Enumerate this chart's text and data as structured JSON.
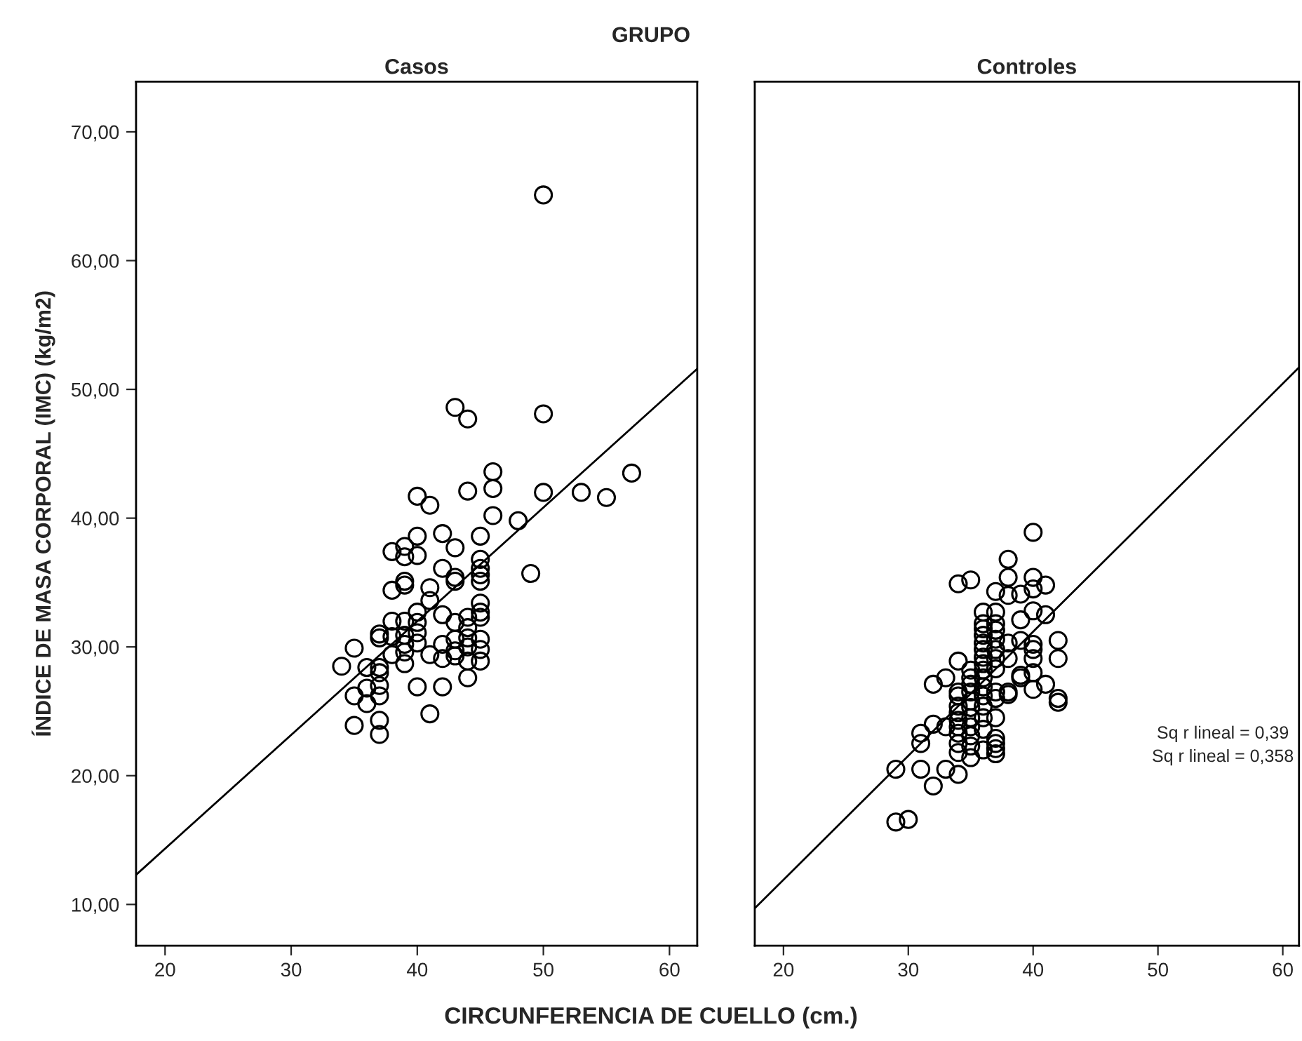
{
  "chart_data": [
    {
      "type": "scatter",
      "title": "Casos",
      "xlabel": "CIRCUNFERENCIA DE CUELLO (cm.)",
      "ylabel": "ÍNDICE DE MASA CORPORAL (IMC) (kg/m2)",
      "annotations": [
        "GRUPO"
      ],
      "xlim": [
        17.7,
        62.2
      ],
      "ylim": [
        6.8,
        73.9
      ],
      "xticks": [
        20,
        30,
        40,
        50,
        60
      ],
      "yticks": [
        {
          "value": 10,
          "label": "10,00"
        },
        {
          "value": 20,
          "label": "20,00"
        },
        {
          "value": 30,
          "label": "30,00"
        },
        {
          "value": 40,
          "label": "40,00"
        },
        {
          "value": 50,
          "label": "50,00"
        },
        {
          "value": 60,
          "label": "60,00"
        },
        {
          "value": 70,
          "label": "70,00"
        }
      ],
      "grid": false,
      "legend": false,
      "series": [
        {
          "marker": "circle",
          "color": "#000000",
          "x": [
            50,
            43,
            44,
            50,
            46,
            57,
            40,
            41,
            44,
            46,
            50,
            53,
            55,
            46,
            48,
            40,
            42,
            45,
            43,
            38,
            39,
            39,
            40,
            42,
            45,
            45,
            45,
            45,
            43,
            43,
            49,
            39,
            39,
            38,
            41,
            41,
            45,
            45,
            45,
            40,
            42,
            43,
            44,
            44,
            38,
            39,
            40,
            37,
            37,
            38,
            39,
            40,
            40,
            39,
            42,
            43,
            44,
            45,
            43,
            43,
            44,
            45,
            38,
            39,
            39,
            41,
            42,
            44,
            45,
            35,
            34,
            36,
            37,
            37,
            44,
            36,
            37,
            35,
            36,
            37,
            40,
            42,
            41,
            35,
            37,
            37
          ],
          "values": [
            65.1,
            48.6,
            47.7,
            48.1,
            43.6,
            43.5,
            41.7,
            41.0,
            42.1,
            42.3,
            42.0,
            42.0,
            41.6,
            40.2,
            39.8,
            38.6,
            38.8,
            38.6,
            37.7,
            37.4,
            37.8,
            37.0,
            37.1,
            36.1,
            36.8,
            36.1,
            35.6,
            35.1,
            35.4,
            35.1,
            35.7,
            35.1,
            34.8,
            34.4,
            34.6,
            33.6,
            33.4,
            32.7,
            32.3,
            32.7,
            32.5,
            31.9,
            32.3,
            31.5,
            32.0,
            32.0,
            31.9,
            31.0,
            30.7,
            30.8,
            30.9,
            31.1,
            30.3,
            30.2,
            30.2,
            30.6,
            30.7,
            30.6,
            29.7,
            29.3,
            30.0,
            29.8,
            29.4,
            29.6,
            28.7,
            29.4,
            29.1,
            28.9,
            28.9,
            29.9,
            28.5,
            28.4,
            28.4,
            28.0,
            27.6,
            26.8,
            27.0,
            26.2,
            25.6,
            26.2,
            26.9,
            26.9,
            24.8,
            23.9,
            24.3,
            23.2
          ]
        },
        {
          "type": "line",
          "color": "#000000",
          "x": [
            17.7,
            62.2
          ],
          "values": [
            12.3,
            51.6
          ]
        }
      ]
    },
    {
      "type": "scatter",
      "title": "Controles",
      "annotations": [
        "Sq r lineal = 0,39",
        "Sq r lineal = 0,358"
      ],
      "xlim": [
        17.7,
        61.3
      ],
      "ylim": [
        6.8,
        73.9
      ],
      "xticks": [
        20,
        30,
        40,
        50,
        60
      ],
      "tick_labels": "x",
      "grid": false,
      "legend": false,
      "series": [
        {
          "marker": "circle",
          "color": "#000000",
          "x": [
            40,
            38,
            34,
            35,
            38,
            40,
            41,
            37,
            38,
            39,
            40,
            36,
            37,
            36,
            36,
            36,
            36,
            36,
            36,
            36,
            36,
            36,
            37,
            37,
            37,
            37,
            37,
            37,
            39,
            40,
            41,
            38,
            39,
            40,
            40,
            42,
            42,
            40,
            40,
            41,
            42,
            42,
            38,
            39,
            39,
            38,
            38,
            40,
            37,
            37,
            37,
            36,
            36,
            36,
            36,
            36,
            35,
            35,
            35,
            35,
            35,
            35,
            35,
            35,
            35,
            35,
            35,
            34,
            34,
            34,
            34,
            34,
            34,
            34,
            34,
            34,
            34,
            33,
            32,
            33,
            32,
            31,
            31,
            37,
            37,
            37,
            37,
            36,
            33,
            34,
            32,
            31,
            29,
            30,
            29
          ],
          "values": [
            38.9,
            36.8,
            34.9,
            35.2,
            35.4,
            35.4,
            34.8,
            34.3,
            34.0,
            34.1,
            34.5,
            32.7,
            32.7,
            31.8,
            31.4,
            30.9,
            30.3,
            29.8,
            29.2,
            28.7,
            28.2,
            27.6,
            31.8,
            31.3,
            30.6,
            29.8,
            29.1,
            28.3,
            32.1,
            32.8,
            32.5,
            30.3,
            30.5,
            30.2,
            29.8,
            30.5,
            29.1,
            29.1,
            28.0,
            27.1,
            26.0,
            25.7,
            29.1,
            27.6,
            27.8,
            26.5,
            26.3,
            26.7,
            26.5,
            26.0,
            24.5,
            26.9,
            26.2,
            25.4,
            24.5,
            23.6,
            28.2,
            27.6,
            27.1,
            26.5,
            25.8,
            25.3,
            24.5,
            23.8,
            23.1,
            22.3,
            21.4,
            28.9,
            26.5,
            26.2,
            25.4,
            24.9,
            24.3,
            23.8,
            23.3,
            22.5,
            21.8,
            27.6,
            27.1,
            23.8,
            24.0,
            23.3,
            22.5,
            22.9,
            22.5,
            22.1,
            21.7,
            22.0,
            20.5,
            20.1,
            19.2,
            20.5,
            20.5,
            16.6,
            16.4
          ]
        },
        {
          "type": "line",
          "color": "#000000",
          "x": [
            17.7,
            61.3
          ],
          "values": [
            9.7,
            51.7
          ]
        }
      ]
    }
  ]
}
